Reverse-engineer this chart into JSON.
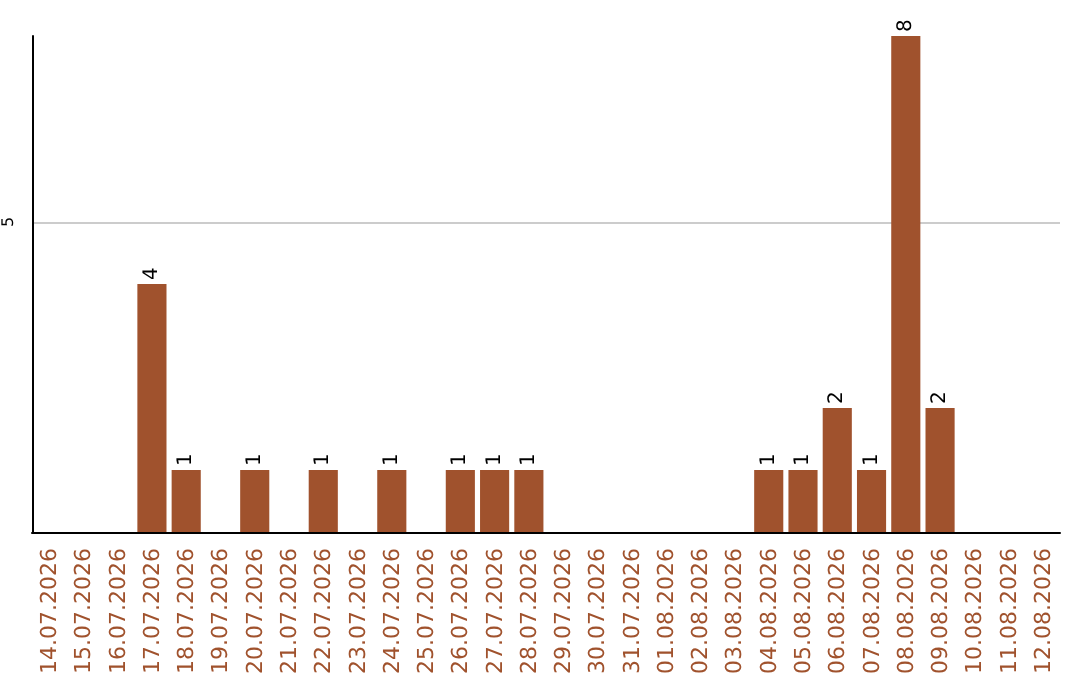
{
  "chart_data": {
    "type": "bar",
    "categories": [
      "14.07.2026",
      "15.07.2026",
      "16.07.2026",
      "17.07.2026",
      "18.07.2026",
      "19.07.2026",
      "20.07.2026",
      "21.07.2026",
      "22.07.2026",
      "23.07.2026",
      "24.07.2026",
      "25.07.2026",
      "26.07.2026",
      "27.07.2026",
      "28.07.2026",
      "29.07.2026",
      "30.07.2026",
      "31.07.2026",
      "01.08.2026",
      "02.08.2026",
      "03.08.2026",
      "04.08.2026",
      "05.08.2026",
      "06.08.2026",
      "07.08.2026",
      "08.08.2026",
      "09.08.2026",
      "10.08.2026",
      "11.08.2026",
      "12.08.2026"
    ],
    "values": [
      null,
      null,
      null,
      4,
      1,
      null,
      1,
      null,
      1,
      null,
      1,
      null,
      1,
      1,
      1,
      null,
      null,
      null,
      null,
      null,
      null,
      1,
      1,
      2,
      1,
      8,
      2,
      null,
      null,
      null
    ],
    "color": "#a0522d",
    "ylim": [
      0,
      8
    ],
    "yticks": [
      5
    ],
    "grid": "y",
    "data_labels": true
  }
}
